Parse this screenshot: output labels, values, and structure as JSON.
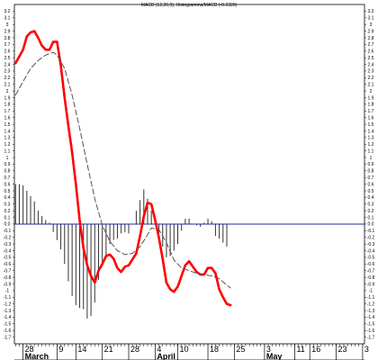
{
  "chart_data": {
    "type": "line",
    "title": "MACD (12,26,9), Histogramma/MACD (-0.2320)",
    "ylim": [
      -1.8,
      3.3
    ],
    "y_ticks": [
      3.2,
      3.1,
      3.0,
      2.9,
      2.8,
      2.7,
      2.6,
      2.5,
      2.4,
      2.3,
      2.2,
      2.1,
      2.0,
      1.9,
      1.8,
      1.7,
      1.6,
      1.5,
      1.4,
      1.3,
      1.2,
      1.1,
      1.0,
      0.9,
      0.8,
      0.7,
      0.6,
      0.5,
      0.4,
      0.3,
      0.2,
      0.1,
      0.0,
      -0.1,
      -0.2,
      -0.3,
      -0.4,
      -0.5,
      -0.6,
      -0.7,
      -0.8,
      -0.9,
      -1.0,
      -1.1,
      -1.2,
      -1.3,
      -1.4,
      -1.5,
      -1.6,
      -1.7
    ],
    "y_tick_labels": [
      "3.2",
      "3.1",
      "3",
      "2.9",
      "2.8",
      "2.7",
      "2.6",
      "2.5",
      "2.4",
      "2.3",
      "2.2",
      "2.1",
      "2",
      "1.9",
      "1.8",
      "1.7",
      "1.6",
      "1.5",
      "1.4",
      "1.3",
      "1.2",
      "1.1",
      "1",
      "0.9",
      "0.8",
      "0.7",
      "0.6",
      "0.5",
      "0.4",
      "0.3",
      "0.2",
      "0.1",
      "0.0",
      "-0.1",
      "-0.2",
      "-0.3",
      "-0.4",
      "-0.5",
      "-0.6",
      "-0.7",
      "-0.8",
      "-0.9",
      "-1",
      "-1.1",
      "-1.2",
      "-1.3",
      "-1.4",
      "-1.5",
      "-1.6",
      "-1.7"
    ],
    "x_ticks": [
      {
        "day": 2,
        "label": "28"
      },
      {
        "day": 11,
        "label": "9"
      },
      {
        "day": 16,
        "label": "14"
      },
      {
        "day": 23,
        "label": "21"
      },
      {
        "day": 30,
        "label": "28"
      },
      {
        "day": 37,
        "label": "4"
      },
      {
        "day": 43,
        "label": "10"
      },
      {
        "day": 51,
        "label": "18"
      },
      {
        "day": 58,
        "label": "25"
      },
      {
        "day": 66,
        "label": "3"
      },
      {
        "day": 74,
        "label": "11"
      },
      {
        "day": 78,
        "label": "16"
      },
      {
        "day": 85,
        "label": "23"
      },
      {
        "day": 92,
        "label": "3"
      }
    ],
    "months": [
      {
        "day": 2,
        "label": "March"
      },
      {
        "day": 37,
        "label": "April"
      },
      {
        "day": 66,
        "label": "May"
      }
    ],
    "xlim": [
      -0.3,
      92.5
    ],
    "series": [
      {
        "color": "#ff0000",
        "points": [
          [
            0,
            2.42
          ],
          [
            2,
            2.62
          ],
          [
            3,
            2.82
          ],
          [
            4,
            2.88
          ],
          [
            5,
            2.9
          ],
          [
            6,
            2.8
          ],
          [
            7,
            2.68
          ],
          [
            8,
            2.62
          ],
          [
            9,
            2.62
          ],
          [
            10,
            2.74
          ],
          [
            11,
            2.74
          ],
          [
            12,
            2.38
          ],
          [
            13,
            1.9
          ],
          [
            14,
            1.48
          ],
          [
            15,
            1.08
          ],
          [
            16,
            0.6
          ],
          [
            17,
            0.06
          ],
          [
            18,
            -0.36
          ],
          [
            19,
            -0.62
          ],
          [
            20,
            -0.78
          ],
          [
            21,
            -0.88
          ],
          [
            22,
            -0.7
          ],
          [
            23,
            -0.6
          ],
          [
            24,
            -0.48
          ],
          [
            25,
            -0.46
          ],
          [
            26,
            -0.52
          ],
          [
            27,
            -0.66
          ],
          [
            28,
            -0.72
          ],
          [
            29,
            -0.64
          ],
          [
            30,
            -0.62
          ],
          [
            32,
            -0.44
          ],
          [
            33,
            -0.18
          ],
          [
            34,
            0.12
          ],
          [
            35,
            0.32
          ],
          [
            36,
            0.3
          ],
          [
            37,
            0.06
          ],
          [
            38,
            -0.2
          ],
          [
            39,
            -0.52
          ],
          [
            40,
            -0.88
          ],
          [
            41,
            -0.98
          ],
          [
            42,
            -1.02
          ],
          [
            43,
            -0.94
          ],
          [
            44,
            -0.78
          ],
          [
            45,
            -0.62
          ],
          [
            46,
            -0.56
          ],
          [
            47,
            -0.64
          ],
          [
            48,
            -0.72
          ],
          [
            49,
            -0.76
          ],
          [
            50,
            -0.76
          ],
          [
            51,
            -0.66
          ],
          [
            52,
            -0.66
          ],
          [
            53,
            -0.74
          ],
          [
            54,
            -0.98
          ],
          [
            55,
            -1.1
          ],
          [
            56,
            -1.2
          ],
          [
            57,
            -1.22
          ]
        ]
      },
      {
        "color": "#555555",
        "dashed": true,
        "points": [
          [
            0,
            1.94
          ],
          [
            2,
            2.14
          ],
          [
            4,
            2.34
          ],
          [
            6,
            2.46
          ],
          [
            8,
            2.54
          ],
          [
            10,
            2.58
          ],
          [
            11,
            2.54
          ],
          [
            13,
            2.34
          ],
          [
            15,
            1.94
          ],
          [
            17,
            1.44
          ],
          [
            19,
            0.9
          ],
          [
            21,
            0.38
          ],
          [
            23,
            -0.02
          ],
          [
            25,
            -0.26
          ],
          [
            27,
            -0.4
          ],
          [
            29,
            -0.46
          ],
          [
            31,
            -0.44
          ],
          [
            33,
            -0.34
          ],
          [
            35,
            -0.16
          ],
          [
            36,
            -0.06
          ],
          [
            38,
            -0.08
          ],
          [
            40,
            -0.28
          ],
          [
            42,
            -0.54
          ],
          [
            44,
            -0.66
          ],
          [
            46,
            -0.7
          ],
          [
            48,
            -0.74
          ],
          [
            50,
            -0.76
          ],
          [
            52,
            -0.78
          ],
          [
            54,
            -0.82
          ],
          [
            56,
            -0.92
          ],
          [
            57,
            -0.96
          ]
        ]
      }
    ],
    "histogram": [
      [
        0,
        0.6
      ],
      [
        1,
        0.6
      ],
      [
        2,
        0.58
      ],
      [
        3,
        0.5
      ],
      [
        4,
        0.42
      ],
      [
        5,
        0.34
      ],
      [
        6,
        0.2
      ],
      [
        7,
        0.12
      ],
      [
        8,
        0.06
      ],
      [
        9,
        0.02
      ],
      [
        10,
        -0.12
      ],
      [
        11,
        -0.24
      ],
      [
        12,
        -0.38
      ],
      [
        13,
        -0.6
      ],
      [
        14,
        -0.86
      ],
      [
        15,
        -1.08
      ],
      [
        16,
        -1.22
      ],
      [
        17,
        -1.26
      ],
      [
        18,
        -1.28
      ],
      [
        19,
        -1.42
      ],
      [
        20,
        -1.38
      ],
      [
        21,
        -1.18
      ],
      [
        22,
        -0.84
      ],
      [
        23,
        -0.62
      ],
      [
        24,
        -0.46
      ],
      [
        25,
        -0.3
      ],
      [
        26,
        -0.24
      ],
      [
        27,
        -0.22
      ],
      [
        28,
        -0.14
      ],
      [
        29,
        -0.12
      ],
      [
        30,
        -0.14
      ],
      [
        31,
        0.0
      ],
      [
        32,
        0.2
      ],
      [
        33,
        0.36
      ],
      [
        34,
        0.52
      ],
      [
        35,
        0.38
      ],
      [
        36,
        0.2
      ],
      [
        37,
        0.06
      ],
      [
        38,
        -0.14
      ],
      [
        39,
        -0.34
      ],
      [
        40,
        -0.5
      ],
      [
        41,
        -0.48
      ],
      [
        42,
        -0.4
      ],
      [
        43,
        -0.3
      ],
      [
        44,
        -0.1
      ],
      [
        45,
        0.08
      ],
      [
        46,
        0.08
      ],
      [
        47,
        0.0
      ],
      [
        48,
        -0.02
      ],
      [
        49,
        -0.04
      ],
      [
        50,
        0.02
      ],
      [
        51,
        0.08
      ],
      [
        52,
        0.04
      ],
      [
        53,
        -0.18
      ],
      [
        54,
        -0.22
      ],
      [
        55,
        -0.28
      ],
      [
        56,
        -0.34
      ]
    ],
    "zero_line_color": "#1f2a9c",
    "grid": false,
    "legend": "none"
  }
}
